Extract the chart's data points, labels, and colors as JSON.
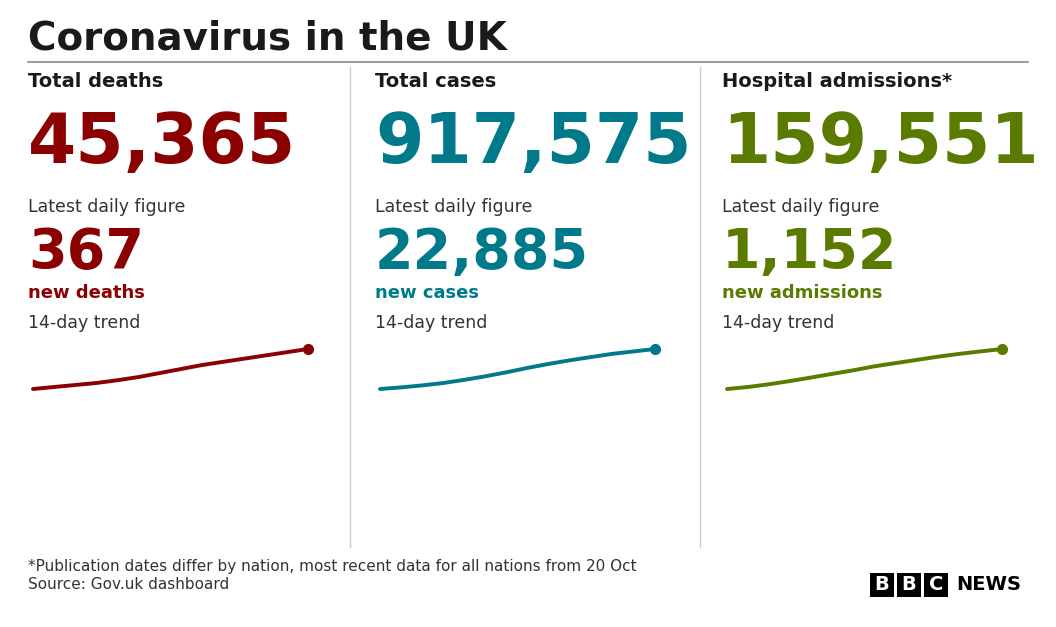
{
  "title": "Coronavirus in the UK",
  "background_color": "#ffffff",
  "title_color": "#1a1a1a",
  "title_fontsize": 28,
  "divider_color": "#555555",
  "columns": [
    {
      "label": "Total deaths",
      "total": "45,365",
      "total_color": "#8b0000",
      "daily_label": "Latest daily figure",
      "daily_value": "367",
      "daily_color": "#8b0000",
      "daily_suffix": "new deaths",
      "trend_label": "14-day trend",
      "trend_x": [
        0,
        1,
        2,
        3,
        4,
        5,
        6,
        7,
        8,
        9,
        10,
        11,
        12,
        13
      ],
      "trend_y": [
        0.0,
        0.05,
        0.1,
        0.15,
        0.22,
        0.3,
        0.4,
        0.5,
        0.6,
        0.68,
        0.76,
        0.84,
        0.92,
        1.0
      ],
      "trend_color": "#8b0000"
    },
    {
      "label": "Total cases",
      "total": "917,575",
      "total_color": "#007a8a",
      "daily_label": "Latest daily figure",
      "daily_value": "22,885",
      "daily_color": "#007a8a",
      "daily_suffix": "new cases",
      "trend_label": "14-day trend",
      "trend_x": [
        0,
        1,
        2,
        3,
        4,
        5,
        6,
        7,
        8,
        9,
        10,
        11,
        12,
        13
      ],
      "trend_y": [
        0.0,
        0.04,
        0.09,
        0.15,
        0.23,
        0.32,
        0.42,
        0.53,
        0.63,
        0.72,
        0.8,
        0.88,
        0.94,
        1.0
      ],
      "trend_color": "#007a8a"
    },
    {
      "label": "Hospital admissions*",
      "total": "159,551",
      "total_color": "#5a7a00",
      "daily_label": "Latest daily figure",
      "daily_value": "1,152",
      "daily_color": "#5a7a00",
      "daily_suffix": "new admissions",
      "trend_label": "14-day trend",
      "trend_x": [
        0,
        1,
        2,
        3,
        4,
        5,
        6,
        7,
        8,
        9,
        10,
        11,
        12,
        13
      ],
      "trend_y": [
        0.0,
        0.05,
        0.12,
        0.2,
        0.29,
        0.38,
        0.47,
        0.57,
        0.65,
        0.73,
        0.81,
        0.88,
        0.94,
        1.0
      ],
      "trend_color": "#5a7a00"
    }
  ],
  "footnote1": "*Publication dates differ by nation, most recent data for all nations from 20 Oct",
  "footnote2": "Source: Gov.uk dashboard",
  "footnote_color": "#333333",
  "footnote_fontsize": 11
}
